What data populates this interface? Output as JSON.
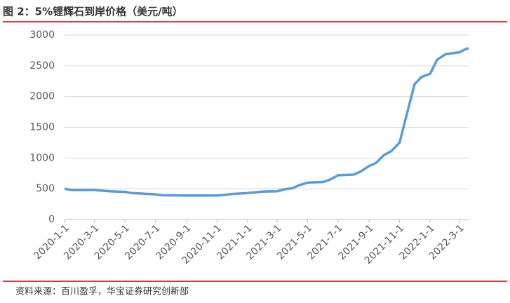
{
  "chart_data": {
    "type": "line",
    "title": "图 2：5%锂辉石到岸价格（美元/吨）",
    "source": "资料来源：百川盈孚，华宝证券研究创新部",
    "x": [
      "2020-1-1",
      "2020-1-15",
      "2020-3-1",
      "2020-4-1",
      "2020-5-1",
      "2020-5-15",
      "2020-7-1",
      "2020-7-15",
      "2020-9-1",
      "2020-11-1",
      "2020-11-15",
      "2020-12-1",
      "2021-1-1",
      "2021-2-1",
      "2021-3-1",
      "2021-3-15",
      "2021-4-1",
      "2021-4-15",
      "2021-5-1",
      "2021-6-1",
      "2021-6-15",
      "2021-7-1",
      "2021-8-1",
      "2021-8-15",
      "2021-9-1",
      "2021-9-15",
      "2021-10-1",
      "2021-10-15",
      "2021-11-1",
      "2021-11-15",
      "2021-12-1",
      "2021-12-15",
      "2022-1-1",
      "2022-1-15",
      "2022-2-1",
      "2022-3-1",
      "2022-3-15",
      "2022-3-19"
    ],
    "series": [
      {
        "name": "5%锂辉石到岸价格",
        "color": "#5b9bd5",
        "values": [
          500,
          480,
          480,
          460,
          450,
          430,
          410,
          395,
          390,
          390,
          400,
          415,
          430,
          455,
          460,
          490,
          510,
          560,
          600,
          610,
          650,
          720,
          730,
          780,
          870,
          920,
          1050,
          1110,
          1250,
          1700,
          2200,
          2320,
          2370,
          2600,
          2690,
          2720,
          2780,
          2780
        ]
      }
    ],
    "xlim": [
      "2020-1-1",
      "2022-3-19"
    ],
    "xticks": [
      "2020-1-1",
      "2020-3-1",
      "2020-5-1",
      "2020-7-1",
      "2020-9-1",
      "2020-11-1",
      "2021-1-1",
      "2021-3-1",
      "2021-5-1",
      "2021-7-1",
      "2021-9-1",
      "2021-11-1",
      "2022-1-1",
      "2022-3-1"
    ],
    "ylim": [
      0,
      3000
    ],
    "yticks": [
      0,
      500,
      1000,
      1500,
      2000,
      2500,
      3000
    ],
    "grid": true
  }
}
